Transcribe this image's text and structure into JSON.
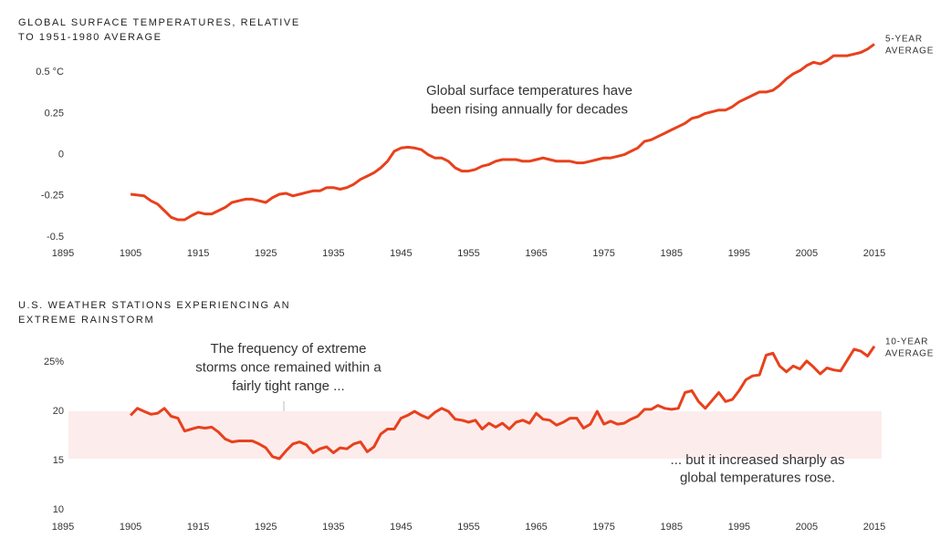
{
  "chart_data": [
    {
      "type": "line",
      "title": [
        "GLOBAL SURFACE TEMPERATURES, RELATIVE",
        "TO 1951-1980 AVERAGE"
      ],
      "annotation": [
        "Global surface temperatures have",
        "been rising annually for decades"
      ],
      "series": [
        {
          "name": [
            "5-YEAR",
            "AVERAGE"
          ],
          "color": "#e8411c",
          "x": [
            1905,
            1906,
            1907,
            1908,
            1909,
            1910,
            1911,
            1912,
            1913,
            1914,
            1915,
            1916,
            1917,
            1918,
            1919,
            1920,
            1921,
            1922,
            1923,
            1924,
            1925,
            1926,
            1927,
            1928,
            1929,
            1930,
            1931,
            1932,
            1933,
            1934,
            1935,
            1936,
            1937,
            1938,
            1939,
            1940,
            1941,
            1942,
            1943,
            1944,
            1945,
            1946,
            1947,
            1948,
            1949,
            1950,
            1951,
            1952,
            1953,
            1954,
            1955,
            1956,
            1957,
            1958,
            1959,
            1960,
            1961,
            1962,
            1963,
            1964,
            1965,
            1966,
            1967,
            1968,
            1969,
            1970,
            1971,
            1972,
            1973,
            1974,
            1975,
            1976,
            1977,
            1978,
            1979,
            1980,
            1981,
            1982,
            1983,
            1984,
            1985,
            1986,
            1987,
            1988,
            1989,
            1990,
            1991,
            1992,
            1993,
            1994,
            1995,
            1996,
            1997,
            1998,
            1999,
            2000,
            2001,
            2002,
            2003,
            2004,
            2005,
            2006,
            2007,
            2008,
            2009,
            2010,
            2011,
            2012,
            2013,
            2014,
            2015
          ],
          "values": [
            -0.24,
            -0.245,
            -0.25,
            -0.28,
            -0.3,
            -0.34,
            -0.38,
            -0.395,
            -0.395,
            -0.37,
            -0.35,
            -0.36,
            -0.36,
            -0.34,
            -0.32,
            -0.29,
            -0.28,
            -0.27,
            -0.27,
            -0.28,
            -0.29,
            -0.26,
            -0.24,
            -0.235,
            -0.25,
            -0.24,
            -0.23,
            -0.22,
            -0.22,
            -0.2,
            -0.2,
            -0.21,
            -0.2,
            -0.18,
            -0.15,
            -0.13,
            -0.11,
            -0.08,
            -0.04,
            0.02,
            0.04,
            0.045,
            0.04,
            0.03,
            0,
            -0.02,
            -0.02,
            -0.04,
            -0.08,
            -0.1,
            -0.1,
            -0.09,
            -0.07,
            -0.06,
            -0.04,
            -0.03,
            -0.03,
            -0.03,
            -0.04,
            -0.04,
            -0.03,
            -0.02,
            -0.03,
            -0.04,
            -0.04,
            -0.04,
            -0.05,
            -0.05,
            -0.04,
            -0.03,
            -0.02,
            -0.02,
            -0.01,
            0,
            0.02,
            0.04,
            0.08,
            0.09,
            0.11,
            0.13,
            0.15,
            0.17,
            0.19,
            0.22,
            0.23,
            0.25,
            0.26,
            0.27,
            0.27,
            0.29,
            0.32,
            0.34,
            0.36,
            0.38,
            0.38,
            0.39,
            0.42,
            0.46,
            0.49,
            0.51,
            0.54,
            0.56,
            0.55,
            0.57,
            0.6,
            0.6,
            0.6,
            0.61,
            0.62,
            0.64,
            0.67
          ]
        }
      ],
      "xlim": [
        1895,
        2015
      ],
      "xticks": [
        1895,
        1905,
        1915,
        1925,
        1935,
        1945,
        1955,
        1965,
        1975,
        1985,
        1995,
        2005,
        2015
      ],
      "ylim": [
        -0.55,
        0.7
      ],
      "yticks": [
        {
          "value": 0.5,
          "label": "0.5 °C"
        },
        0.25,
        0,
        -0.25,
        -0.5
      ]
    },
    {
      "type": "line",
      "title": [
        "U.S. WEATHER STATIONS EXPERIENCING AN",
        "EXTREME RAINSTORM"
      ],
      "annotation": [
        "The frequency of extreme",
        "storms once remained within a",
        "fairly tight range ..."
      ],
      "annotation2": [
        "... but it increased sharply as",
        "global temperatures rose."
      ],
      "band": [
        15.2,
        20
      ],
      "series": [
        {
          "name": [
            "10-YEAR",
            "AVERAGE"
          ],
          "color": "#e8411c",
          "x": [
            1905,
            1906,
            1907,
            1908,
            1909,
            1910,
            1911,
            1912,
            1913,
            1914,
            1915,
            1916,
            1917,
            1918,
            1919,
            1920,
            1921,
            1922,
            1923,
            1924,
            1925,
            1926,
            1927,
            1928,
            1929,
            1930,
            1931,
            1932,
            1933,
            1934,
            1935,
            1936,
            1937,
            1938,
            1939,
            1940,
            1941,
            1942,
            1943,
            1944,
            1945,
            1946,
            1947,
            1948,
            1949,
            1950,
            1951,
            1952,
            1953,
            1954,
            1955,
            1956,
            1957,
            1958,
            1959,
            1960,
            1961,
            1962,
            1963,
            1964,
            1965,
            1966,
            1967,
            1968,
            1969,
            1970,
            1971,
            1972,
            1973,
            1974,
            1975,
            1976,
            1977,
            1978,
            1979,
            1980,
            1981,
            1982,
            1983,
            1984,
            1985,
            1986,
            1987,
            1988,
            1989,
            1990,
            1991,
            1992,
            1993,
            1994,
            1995,
            1996,
            1997,
            1998,
            1999,
            2000,
            2001,
            2002,
            2003,
            2004,
            2005,
            2006,
            2007,
            2008,
            2009,
            2010,
            2011,
            2012,
            2013,
            2014,
            2015
          ],
          "values": [
            19.6,
            20.3,
            20,
            19.7,
            19.8,
            20.3,
            19.5,
            19.3,
            18,
            18.2,
            18.4,
            18.3,
            18.4,
            17.9,
            17.2,
            16.9,
            17,
            17,
            17,
            16.7,
            16.3,
            15.4,
            15.2,
            16,
            16.7,
            16.9,
            16.6,
            15.8,
            16.2,
            16.4,
            15.8,
            16.3,
            16.2,
            16.7,
            16.9,
            15.9,
            16.4,
            17.7,
            18.2,
            18.2,
            19.3,
            19.6,
            20,
            19.6,
            19.3,
            19.9,
            20.3,
            20,
            19.2,
            19.1,
            18.9,
            19.1,
            18.2,
            18.8,
            18.4,
            18.8,
            18.2,
            18.9,
            19.1,
            18.8,
            19.8,
            19.2,
            19.1,
            18.6,
            18.9,
            19.3,
            19.3,
            18.3,
            18.7,
            20,
            18.7,
            19,
            18.7,
            18.8,
            19.2,
            19.5,
            20.2,
            20.2,
            20.6,
            20.3,
            20.2,
            20.3,
            21.9,
            22.1,
            21,
            20.3,
            21.1,
            21.9,
            21,
            21.2,
            22.1,
            23.2,
            23.6,
            23.7,
            25.7,
            25.9,
            24.6,
            24,
            24.6,
            24.3,
            25.1,
            24.5,
            23.8,
            24.4,
            24.2,
            24.1,
            25.2,
            26.3,
            26.1,
            25.6,
            26.6
          ]
        }
      ],
      "xlim": [
        1895,
        2015
      ],
      "xticks": [
        1895,
        1905,
        1915,
        1925,
        1935,
        1945,
        1955,
        1965,
        1975,
        1985,
        1995,
        2005,
        2015
      ],
      "ylim": [
        9,
        27.5
      ],
      "yticks": [
        {
          "value": 25,
          "label": "25%"
        },
        20,
        15,
        10
      ]
    }
  ]
}
